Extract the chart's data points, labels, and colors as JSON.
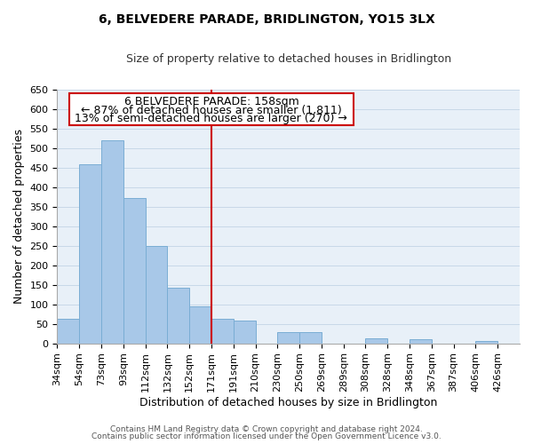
{
  "title": "6, BELVEDERE PARADE, BRIDLINGTON, YO15 3LX",
  "subtitle": "Size of property relative to detached houses in Bridlington",
  "xlabel": "Distribution of detached houses by size in Bridlington",
  "ylabel": "Number of detached properties",
  "categories": [
    "34sqm",
    "54sqm",
    "73sqm",
    "93sqm",
    "112sqm",
    "132sqm",
    "152sqm",
    "171sqm",
    "191sqm",
    "210sqm",
    "230sqm",
    "250sqm",
    "269sqm",
    "289sqm",
    "308sqm",
    "328sqm",
    "348sqm",
    "367sqm",
    "387sqm",
    "406sqm",
    "426sqm"
  ],
  "values": [
    62,
    458,
    520,
    372,
    250,
    143,
    95,
    62,
    58,
    0,
    28,
    28,
    0,
    0,
    12,
    0,
    10,
    0,
    0,
    5,
    0
  ],
  "bar_color": "#a8c8e8",
  "bar_edge_color": "#7aadd4",
  "ref_line_color": "#cc0000",
  "annotation_box_edge": "#cc0000",
  "ref_line_index": 7.0,
  "reference_label": "6 BELVEDERE PARADE: 158sqm",
  "annotation_line1": "← 87% of detached houses are smaller (1,811)",
  "annotation_line2": "13% of semi-detached houses are larger (270) →",
  "ylim": [
    0,
    650
  ],
  "yticks": [
    0,
    50,
    100,
    150,
    200,
    250,
    300,
    350,
    400,
    450,
    500,
    550,
    600,
    650
  ],
  "footer1": "Contains HM Land Registry data © Crown copyright and database right 2024.",
  "footer2": "Contains public sector information licensed under the Open Government Licence v3.0.",
  "bg_color": "#e8f0f8",
  "title_fontsize": 10,
  "subtitle_fontsize": 9,
  "ylabel_fontsize": 9,
  "xlabel_fontsize": 9,
  "tick_fontsize": 8,
  "annot_fontsize": 9,
  "footer_fontsize": 6.5
}
